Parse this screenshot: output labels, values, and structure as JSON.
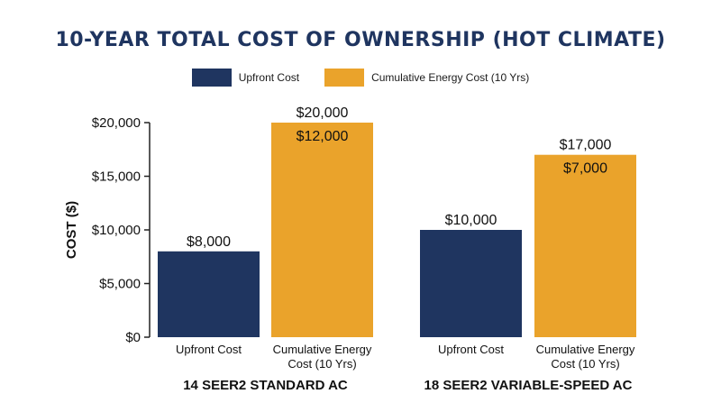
{
  "chart_data": {
    "type": "bar",
    "title": "10-YEAR TOTAL COST OF OWNERSHIP (HOT CLIMATE)",
    "ylabel": "COST ($)",
    "xlabel": "",
    "ylim": [
      0,
      20000
    ],
    "yticks": [
      "$0",
      "$5,000",
      "$10,000",
      "$15,000",
      "$20,000"
    ],
    "ytick_values": [
      0,
      5000,
      10000,
      15000,
      20000
    ],
    "legend_position": "top-center",
    "grid": false,
    "series": [
      {
        "name": "Upfront Cost",
        "color": "#1f3560"
      },
      {
        "name": "Cumulative Energy Cost (10 Yrs)",
        "color": "#eaa32b"
      }
    ],
    "groups": [
      {
        "label": "14 SEER2 STANDARD AC",
        "bars": [
          {
            "category": "Upfront Cost",
            "category_line2": "",
            "value": 8000,
            "labels": [
              "$8,000"
            ]
          },
          {
            "category": "Cumulative Energy",
            "category_line2": "Cost (10 Yrs)",
            "value": 20000,
            "labels": [
              "$20,000",
              "$12,000"
            ]
          }
        ]
      },
      {
        "label": "18 SEER2 VARIABLE-SPEED AC",
        "bars": [
          {
            "category": "Upfront Cost",
            "category_line2": "",
            "value": 10000,
            "labels": [
              "$10,000"
            ]
          },
          {
            "category": "Cumulative Energy",
            "category_line2": "Cost (10 Yrs)",
            "value": 17000,
            "labels": [
              "$17,000",
              "$7,000"
            ]
          }
        ]
      }
    ]
  }
}
